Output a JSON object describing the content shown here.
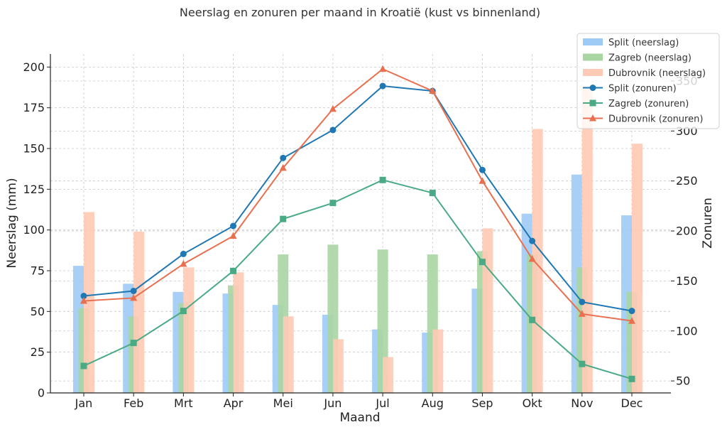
{
  "chart_data": {
    "type": "bar",
    "title": "Neerslag en zonuren per maand in Kroatië (kust vs binnenland)",
    "xlabel": "Maand",
    "ylabel": "Neerslag (mm)",
    "y2label": "Zonuren",
    "categories": [
      "Jan",
      "Feb",
      "Mrt",
      "Apr",
      "Mei",
      "Jun",
      "Jul",
      "Aug",
      "Sep",
      "Okt",
      "Nov",
      "Dec"
    ],
    "ylim": [
      0,
      208
    ],
    "yticks": [
      0,
      25,
      50,
      75,
      100,
      125,
      150,
      175,
      200
    ],
    "y2lim": [
      38,
      377
    ],
    "y2ticks": [
      50,
      100,
      150,
      200,
      250,
      300,
      350
    ],
    "grid": true,
    "legend_position": "top-right",
    "bar_series": [
      {
        "name": "Split (neerslag)",
        "color": "#9ecbf5",
        "values": [
          78,
          67,
          62,
          61,
          54,
          48,
          39,
          37,
          64,
          110,
          134,
          109
        ]
      },
      {
        "name": "Zagreb (neerslag)",
        "color": "#a8d5a2",
        "values": [
          52,
          47,
          55,
          66,
          85,
          91,
          88,
          85,
          87,
          85,
          77,
          62
        ]
      },
      {
        "name": "Dubrovnik (neerslag)",
        "color": "#ffcab5",
        "values": [
          111,
          99,
          77,
          74,
          47,
          33,
          22,
          39,
          101,
          162,
          188,
          153
        ]
      }
    ],
    "line_series": [
      {
        "name": "Split (zonuren)",
        "color": "#1f77b4",
        "marker": "circle",
        "values": [
          135,
          140,
          177,
          205,
          273,
          301,
          345,
          340,
          261,
          190,
          129,
          120
        ]
      },
      {
        "name": "Zagreb (zonuren)",
        "color": "#4aaa86",
        "marker": "square",
        "values": [
          65,
          88,
          120,
          160,
          212,
          228,
          251,
          238,
          169,
          111,
          67,
          52
        ]
      },
      {
        "name": "Dubrovnik (zonuren)",
        "color": "#e8704f",
        "marker": "triangle",
        "values": [
          130,
          133,
          167,
          195,
          263,
          322,
          362,
          340,
          250,
          172,
          117,
          110
        ]
      }
    ]
  }
}
